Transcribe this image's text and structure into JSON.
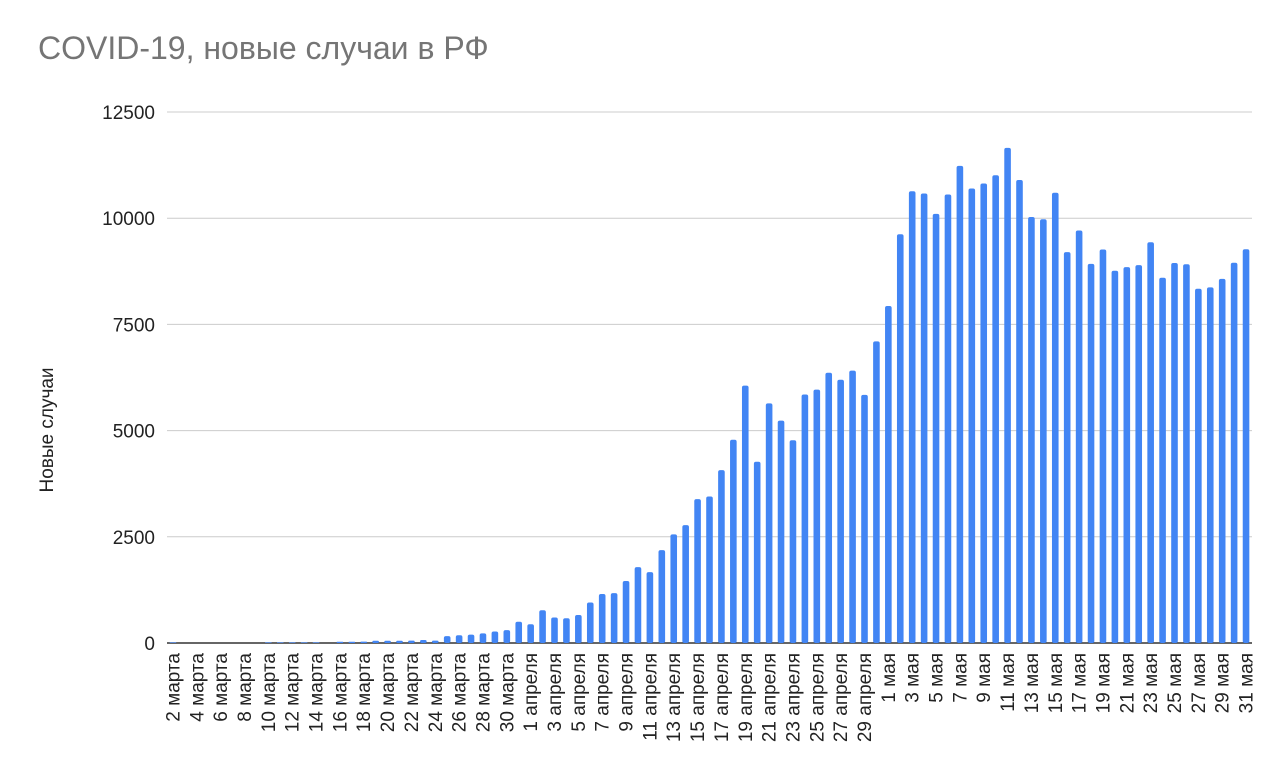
{
  "chart_data": {
    "type": "bar",
    "title": "COVID-19, новые случаи в РФ",
    "xlabel": "",
    "ylabel": "Новые случаи",
    "ylim": [
      0,
      12500
    ],
    "yticks": [
      0,
      2500,
      5000,
      7500,
      10000,
      12500
    ],
    "grid": true,
    "legend": "none",
    "bar_color": "#4285f4",
    "categories": [
      "2 марта",
      "3 марта",
      "4 марта",
      "5 марта",
      "6 марта",
      "7 марта",
      "8 марта",
      "9 марта",
      "10 марта",
      "11 марта",
      "12 марта",
      "13 марта",
      "14 марта",
      "15 марта",
      "16 марта",
      "17 марта",
      "18 марта",
      "19 марта",
      "20 марта",
      "21 марта",
      "22 марта",
      "23 марта",
      "24 марта",
      "25 марта",
      "26 марта",
      "27 марта",
      "28 марта",
      "29 марта",
      "30 марта",
      "31 марта",
      "1 апреля",
      "2 апреля",
      "3 апреля",
      "4 апреля",
      "5 апреля",
      "6 апреля",
      "7 апреля",
      "8 апреля",
      "9 апреля",
      "10 апреля",
      "11 апреля",
      "12 апреля",
      "13 апреля",
      "14 апреля",
      "15 апреля",
      "16 апреля",
      "17 апреля",
      "18 апреля",
      "19 апреля",
      "20 апреля",
      "21 апреля",
      "22 апреля",
      "23 апреля",
      "24 апреля",
      "25 апреля",
      "26 апреля",
      "27 апреля",
      "28 апреля",
      "29 апреля",
      "30 апреля",
      "1 мая",
      "2 мая",
      "3 мая",
      "4 мая",
      "5 мая",
      "6 мая",
      "7 мая",
      "8 мая",
      "9 мая",
      "10 мая",
      "11 мая",
      "12 мая",
      "13 мая",
      "14 мая",
      "15 мая",
      "16 мая",
      "17 мая",
      "18 мая",
      "19 мая",
      "20 мая",
      "21 мая",
      "22 мая",
      "23 мая",
      "24 мая",
      "25 мая",
      "26 мая",
      "27 мая",
      "28 мая",
      "29 мая",
      "30 мая",
      "31 мая"
    ],
    "x_tick_labels": [
      "2 марта",
      "4 марта",
      "6 марта",
      "8 марта",
      "10 марта",
      "12 марта",
      "14 марта",
      "16 марта",
      "18 марта",
      "20 марта",
      "22 марта",
      "24 марта",
      "26 марта",
      "28 марта",
      "30 марта",
      "1 апреля",
      "3 апреля",
      "5 апреля",
      "7 апреля",
      "9 апреля",
      "11 апреля",
      "13 апреля",
      "15 апреля",
      "17 апреля",
      "19 апреля",
      "21 апреля",
      "23 апреля",
      "25 апреля",
      "27 апреля",
      "29 апреля",
      "1 мая",
      "3 мая",
      "5 мая",
      "7 мая",
      "9 мая",
      "11 мая",
      "13 мая",
      "15 мая",
      "17 мая",
      "19 мая",
      "21 мая",
      "23 мая",
      "25 мая",
      "27 мая",
      "29 мая",
      "31 мая"
    ],
    "values": [
      1,
      0,
      0,
      0,
      0,
      0,
      0,
      0,
      3,
      8,
      6,
      11,
      14,
      0,
      30,
      29,
      33,
      52,
      54,
      53,
      57,
      71,
      57,
      163,
      182,
      196,
      228,
      270,
      302,
      500,
      440,
      771,
      601,
      582,
      658,
      954,
      1154,
      1175,
      1459,
      1786,
      1667,
      2186,
      2558,
      2774,
      3388,
      3448,
      4070,
      4785,
      6060,
      4268,
      5642,
      5236,
      4774,
      5849,
      5966,
      6361,
      6198,
      6411,
      5841,
      7099,
      7933,
      9623,
      10633,
      10581,
      10102,
      10559,
      11231,
      10699,
      10817,
      11012,
      11656,
      10899,
      10028,
      9974,
      10598,
      9200,
      9709,
      8926,
      9263,
      8764,
      8849,
      8894,
      9434,
      8599,
      8946,
      8915,
      8338,
      8371,
      8572,
      8952,
      9268
    ]
  }
}
